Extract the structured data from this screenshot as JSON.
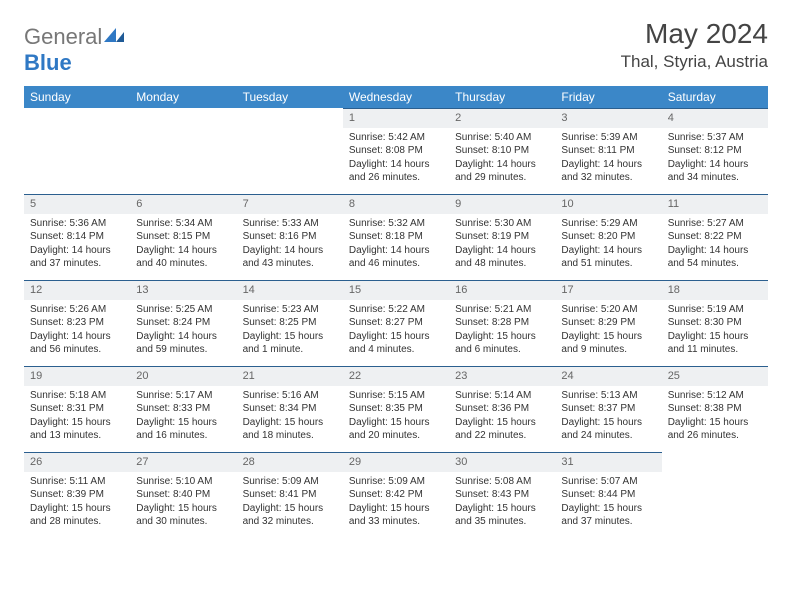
{
  "logo": {
    "text_gray": "General",
    "text_blue": "Blue"
  },
  "title": "May 2024",
  "location": "Thal, Styria, Austria",
  "colors": {
    "header_bg": "#3b87c8",
    "header_text": "#ffffff",
    "daynum_bg": "#eef0f2",
    "daynum_border": "#2b5f8f",
    "body_text": "#333333"
  },
  "weekdays": [
    "Sunday",
    "Monday",
    "Tuesday",
    "Wednesday",
    "Thursday",
    "Friday",
    "Saturday"
  ],
  "weeks": [
    [
      null,
      null,
      null,
      {
        "n": "1",
        "sr": "Sunrise: 5:42 AM",
        "ss": "Sunset: 8:08 PM",
        "dl1": "Daylight: 14 hours",
        "dl2": "and 26 minutes."
      },
      {
        "n": "2",
        "sr": "Sunrise: 5:40 AM",
        "ss": "Sunset: 8:10 PM",
        "dl1": "Daylight: 14 hours",
        "dl2": "and 29 minutes."
      },
      {
        "n": "3",
        "sr": "Sunrise: 5:39 AM",
        "ss": "Sunset: 8:11 PM",
        "dl1": "Daylight: 14 hours",
        "dl2": "and 32 minutes."
      },
      {
        "n": "4",
        "sr": "Sunrise: 5:37 AM",
        "ss": "Sunset: 8:12 PM",
        "dl1": "Daylight: 14 hours",
        "dl2": "and 34 minutes."
      }
    ],
    [
      {
        "n": "5",
        "sr": "Sunrise: 5:36 AM",
        "ss": "Sunset: 8:14 PM",
        "dl1": "Daylight: 14 hours",
        "dl2": "and 37 minutes."
      },
      {
        "n": "6",
        "sr": "Sunrise: 5:34 AM",
        "ss": "Sunset: 8:15 PM",
        "dl1": "Daylight: 14 hours",
        "dl2": "and 40 minutes."
      },
      {
        "n": "7",
        "sr": "Sunrise: 5:33 AM",
        "ss": "Sunset: 8:16 PM",
        "dl1": "Daylight: 14 hours",
        "dl2": "and 43 minutes."
      },
      {
        "n": "8",
        "sr": "Sunrise: 5:32 AM",
        "ss": "Sunset: 8:18 PM",
        "dl1": "Daylight: 14 hours",
        "dl2": "and 46 minutes."
      },
      {
        "n": "9",
        "sr": "Sunrise: 5:30 AM",
        "ss": "Sunset: 8:19 PM",
        "dl1": "Daylight: 14 hours",
        "dl2": "and 48 minutes."
      },
      {
        "n": "10",
        "sr": "Sunrise: 5:29 AM",
        "ss": "Sunset: 8:20 PM",
        "dl1": "Daylight: 14 hours",
        "dl2": "and 51 minutes."
      },
      {
        "n": "11",
        "sr": "Sunrise: 5:27 AM",
        "ss": "Sunset: 8:22 PM",
        "dl1": "Daylight: 14 hours",
        "dl2": "and 54 minutes."
      }
    ],
    [
      {
        "n": "12",
        "sr": "Sunrise: 5:26 AM",
        "ss": "Sunset: 8:23 PM",
        "dl1": "Daylight: 14 hours",
        "dl2": "and 56 minutes."
      },
      {
        "n": "13",
        "sr": "Sunrise: 5:25 AM",
        "ss": "Sunset: 8:24 PM",
        "dl1": "Daylight: 14 hours",
        "dl2": "and 59 minutes."
      },
      {
        "n": "14",
        "sr": "Sunrise: 5:23 AM",
        "ss": "Sunset: 8:25 PM",
        "dl1": "Daylight: 15 hours",
        "dl2": "and 1 minute."
      },
      {
        "n": "15",
        "sr": "Sunrise: 5:22 AM",
        "ss": "Sunset: 8:27 PM",
        "dl1": "Daylight: 15 hours",
        "dl2": "and 4 minutes."
      },
      {
        "n": "16",
        "sr": "Sunrise: 5:21 AM",
        "ss": "Sunset: 8:28 PM",
        "dl1": "Daylight: 15 hours",
        "dl2": "and 6 minutes."
      },
      {
        "n": "17",
        "sr": "Sunrise: 5:20 AM",
        "ss": "Sunset: 8:29 PM",
        "dl1": "Daylight: 15 hours",
        "dl2": "and 9 minutes."
      },
      {
        "n": "18",
        "sr": "Sunrise: 5:19 AM",
        "ss": "Sunset: 8:30 PM",
        "dl1": "Daylight: 15 hours",
        "dl2": "and 11 minutes."
      }
    ],
    [
      {
        "n": "19",
        "sr": "Sunrise: 5:18 AM",
        "ss": "Sunset: 8:31 PM",
        "dl1": "Daylight: 15 hours",
        "dl2": "and 13 minutes."
      },
      {
        "n": "20",
        "sr": "Sunrise: 5:17 AM",
        "ss": "Sunset: 8:33 PM",
        "dl1": "Daylight: 15 hours",
        "dl2": "and 16 minutes."
      },
      {
        "n": "21",
        "sr": "Sunrise: 5:16 AM",
        "ss": "Sunset: 8:34 PM",
        "dl1": "Daylight: 15 hours",
        "dl2": "and 18 minutes."
      },
      {
        "n": "22",
        "sr": "Sunrise: 5:15 AM",
        "ss": "Sunset: 8:35 PM",
        "dl1": "Daylight: 15 hours",
        "dl2": "and 20 minutes."
      },
      {
        "n": "23",
        "sr": "Sunrise: 5:14 AM",
        "ss": "Sunset: 8:36 PM",
        "dl1": "Daylight: 15 hours",
        "dl2": "and 22 minutes."
      },
      {
        "n": "24",
        "sr": "Sunrise: 5:13 AM",
        "ss": "Sunset: 8:37 PM",
        "dl1": "Daylight: 15 hours",
        "dl2": "and 24 minutes."
      },
      {
        "n": "25",
        "sr": "Sunrise: 5:12 AM",
        "ss": "Sunset: 8:38 PM",
        "dl1": "Daylight: 15 hours",
        "dl2": "and 26 minutes."
      }
    ],
    [
      {
        "n": "26",
        "sr": "Sunrise: 5:11 AM",
        "ss": "Sunset: 8:39 PM",
        "dl1": "Daylight: 15 hours",
        "dl2": "and 28 minutes."
      },
      {
        "n": "27",
        "sr": "Sunrise: 5:10 AM",
        "ss": "Sunset: 8:40 PM",
        "dl1": "Daylight: 15 hours",
        "dl2": "and 30 minutes."
      },
      {
        "n": "28",
        "sr": "Sunrise: 5:09 AM",
        "ss": "Sunset: 8:41 PM",
        "dl1": "Daylight: 15 hours",
        "dl2": "and 32 minutes."
      },
      {
        "n": "29",
        "sr": "Sunrise: 5:09 AM",
        "ss": "Sunset: 8:42 PM",
        "dl1": "Daylight: 15 hours",
        "dl2": "and 33 minutes."
      },
      {
        "n": "30",
        "sr": "Sunrise: 5:08 AM",
        "ss": "Sunset: 8:43 PM",
        "dl1": "Daylight: 15 hours",
        "dl2": "and 35 minutes."
      },
      {
        "n": "31",
        "sr": "Sunrise: 5:07 AM",
        "ss": "Sunset: 8:44 PM",
        "dl1": "Daylight: 15 hours",
        "dl2": "and 37 minutes."
      },
      null
    ]
  ]
}
